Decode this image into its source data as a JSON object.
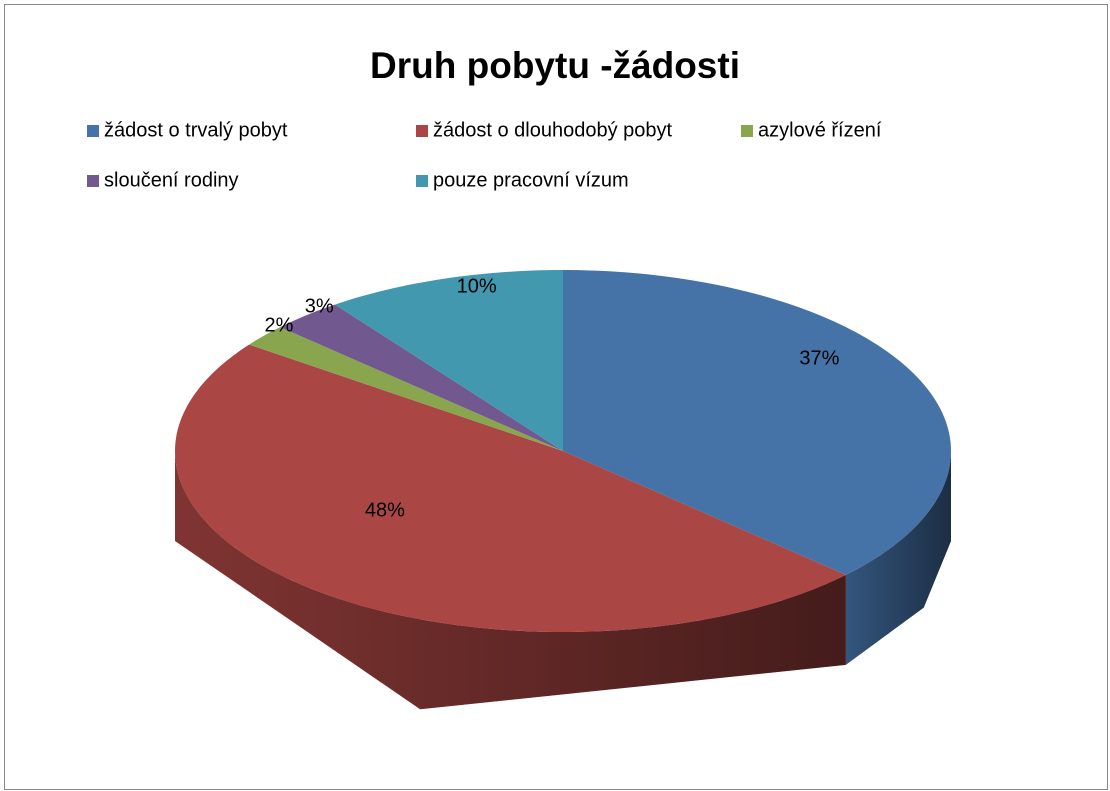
{
  "chart_data": {
    "type": "pie3d",
    "title": "Druh pobytu -žádosti",
    "categories": [
      "žádost o trvalý pobyt",
      "žádost o dlouhodobý pobyt",
      "azylové řízení",
      "sloučení rodiny",
      "pouze pracovní vízum"
    ],
    "values": [
      37,
      48,
      2,
      3,
      10
    ],
    "value_labels": [
      "37%",
      "48%",
      "2%",
      "3%",
      "10%"
    ],
    "colors": [
      "#4572a7",
      "#aa4643",
      "#89a54e",
      "#71588f",
      "#4198af"
    ],
    "legend": "top"
  }
}
